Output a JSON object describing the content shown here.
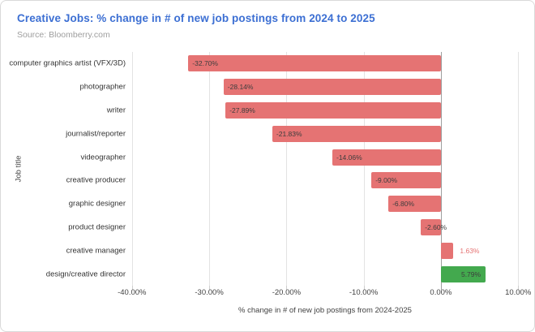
{
  "header": {
    "title": "Creative Jobs: % change in # of new job postings from 2024 to 2025",
    "source": "Source: Bloomberry.com"
  },
  "chart_data": {
    "type": "bar",
    "orientation": "horizontal",
    "title": "Creative Jobs: % change in # of new job postings from 2024 to 2025",
    "source": "Source: Bloomberry.com",
    "xlabel": "% change in # of new job postings from 2024-2025",
    "ylabel": "Job title",
    "categories": [
      "computer graphics artist (VFX/3D)",
      "photographer",
      "writer",
      "journalist/reporter",
      "videographer",
      "creative producer",
      "graphic designer",
      "product designer",
      "creative manager",
      "design/creative director"
    ],
    "values": [
      -32.7,
      -28.14,
      -27.89,
      -21.83,
      -14.06,
      -9.0,
      -6.8,
      -2.6,
      1.63,
      5.79
    ],
    "value_labels": [
      "-32.70%",
      "-28.14%",
      "-27.89%",
      "-21.83%",
      "-14.06%",
      "-9.00%",
      "-6.80%",
      "-2.60%",
      "1.63%",
      "5.79%"
    ],
    "bar_colors": [
      "#e57373",
      "#e57373",
      "#e57373",
      "#e57373",
      "#e57373",
      "#e57373",
      "#e57373",
      "#e57373",
      "#e57373",
      "#43a94e"
    ],
    "xticks": [
      -40,
      -30,
      -20,
      -10,
      0,
      10
    ],
    "xtick_labels": [
      "-40.00%",
      "-30.00%",
      "-20.00%",
      "-10.00%",
      "0.00%",
      "10.00%"
    ],
    "xlim": [
      -40.5,
      10.5
    ],
    "grid": "vertical",
    "legend": "none",
    "colors": {
      "negative_bar": "#e57373",
      "positive_bar": "#43a94e",
      "title_text": "#3c6fd3",
      "source_text": "#9e9e9e",
      "gridline": "#e3e3e3",
      "zero_line": "#9e9e9e",
      "axis_text": "#424242",
      "value_label_text": "#3d3d3d"
    }
  }
}
